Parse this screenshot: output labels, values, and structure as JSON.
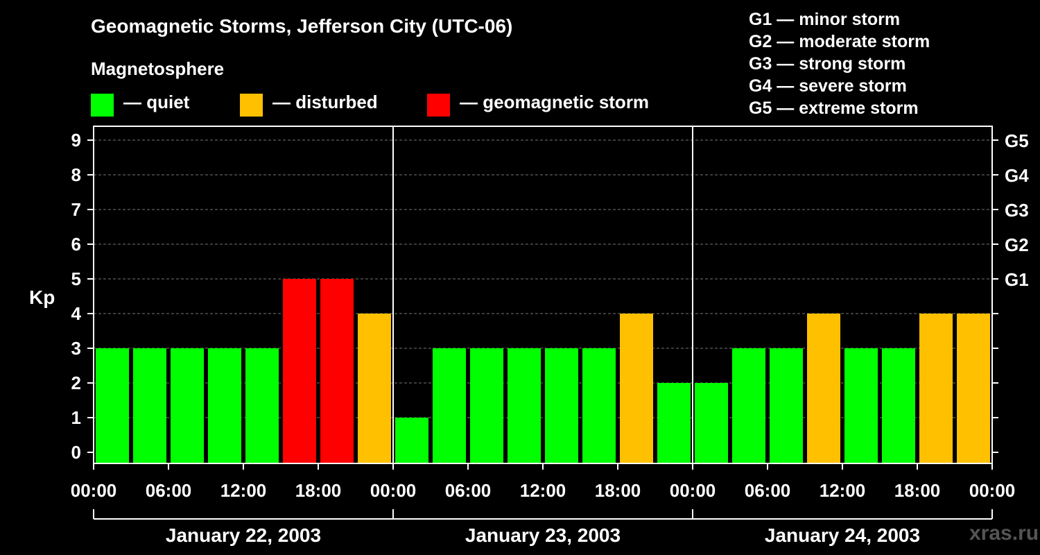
{
  "header": {
    "title": "Geomagnetic Storms, Jefferson City (UTC-06)",
    "subtitle": "Magnetosphere"
  },
  "legend": [
    {
      "label": "— quiet",
      "color": "#00ff00"
    },
    {
      "label": "— disturbed",
      "color": "#ffc000"
    },
    {
      "label": "— geomagnetic storm",
      "color": "#ff0000"
    }
  ],
  "storm_levels": [
    "G1 — minor storm",
    "G2 — moderate storm",
    "G3 — strong storm",
    "G4 — severe storm",
    "G5 — extreme storm"
  ],
  "watermark": "xras.ru",
  "chart_data": {
    "type": "bar",
    "title": "Geomagnetic Storms, Jefferson City (UTC-06)",
    "ylabel": "Kp",
    "ylim": [
      0,
      9
    ],
    "yticks": [
      "0",
      "1",
      "2",
      "3",
      "4",
      "5",
      "6",
      "7",
      "8",
      "9"
    ],
    "right_ticks": [
      {
        "kp": 5,
        "label": "G1"
      },
      {
        "kp": 6,
        "label": "G2"
      },
      {
        "kp": 7,
        "label": "G3"
      },
      {
        "kp": 8,
        "label": "G4"
      },
      {
        "kp": 9,
        "label": "G5"
      }
    ],
    "xticks": [
      "00:00",
      "06:00",
      "12:00",
      "18:00",
      "00:00",
      "06:00",
      "12:00",
      "18:00",
      "00:00",
      "06:00",
      "12:00",
      "18:00",
      "00:00"
    ],
    "days": [
      "January 22, 2003",
      "January 23, 2003",
      "January 24, 2003"
    ],
    "interval_hours": 3,
    "values": [
      3,
      3,
      3,
      3,
      3,
      5,
      5,
      4,
      1,
      3,
      3,
      3,
      3,
      3,
      4,
      2,
      2,
      3,
      3,
      4,
      3,
      3,
      4,
      4
    ],
    "categories": [
      "quiet",
      "quiet",
      "quiet",
      "quiet",
      "quiet",
      "storm",
      "storm",
      "disturbed",
      "quiet",
      "quiet",
      "quiet",
      "quiet",
      "quiet",
      "quiet",
      "disturbed",
      "quiet",
      "quiet",
      "quiet",
      "quiet",
      "disturbed",
      "quiet",
      "quiet",
      "disturbed",
      "disturbed"
    ],
    "colors": {
      "quiet": "#00ff00",
      "disturbed": "#ffc000",
      "storm": "#ff0000"
    },
    "grid": true
  }
}
